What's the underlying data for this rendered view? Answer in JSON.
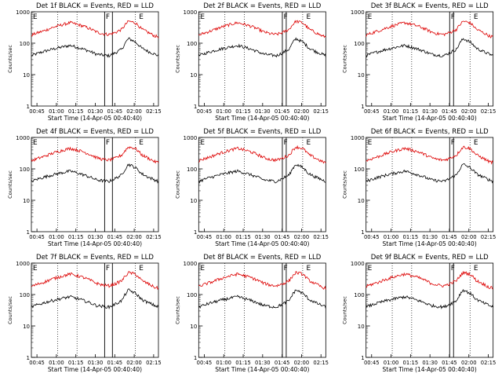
{
  "colors": {
    "events": "#000000",
    "lld": "#dd0000",
    "axis": "#000000"
  },
  "common": {
    "ylabel": "Counts/sec",
    "xlabel": "Start Time (14-Apr-05 00:40:40)",
    "x_ticks": [
      "00:45",
      "01:00",
      "01:15",
      "01:30",
      "01:45",
      "02:00",
      "02:15"
    ],
    "y_ticks": [
      "1",
      "10",
      "100",
      "1000"
    ],
    "markers": [
      "E",
      "F",
      "E"
    ]
  },
  "chart_data": [
    {
      "type": "line",
      "title": "Det 1f BLACK = Events, RED = LLD",
      "xlabel": "Start Time (14-Apr-05 00:40:40)",
      "ylabel": "Counts/sec",
      "ylog": true,
      "ylim": [
        1,
        1000
      ],
      "x_range_minutes_after_start": [
        0,
        98
      ],
      "gridlines_minutes": [
        20.2,
        35.2,
        80.2
      ],
      "band_minutes": [
        56.5,
        62.5
      ],
      "series": [
        {
          "x": [
            0,
            10,
            20,
            30,
            40,
            50,
            55,
            60,
            65,
            70,
            75,
            80,
            85,
            90,
            95,
            98
          ],
          "values": [
            40,
            55,
            70,
            85,
            65,
            45,
            42,
            40,
            50,
            65,
            140,
            110,
            70,
            55,
            45,
            40
          ]
        },
        {
          "x": [
            0,
            10,
            20,
            30,
            40,
            50,
            55,
            60,
            65,
            70,
            75,
            80,
            85,
            90,
            95,
            98
          ],
          "values": [
            180,
            250,
            350,
            450,
            350,
            230,
            200,
            190,
            220,
            280,
            500,
            450,
            280,
            220,
            170,
            160
          ]
        }
      ]
    },
    {
      "type": "line",
      "title": "Det 2f BLACK = Events, RED = LLD",
      "xlabel": "Start Time (14-Apr-05 00:40:40)",
      "ylabel": "Counts/sec",
      "ylog": true,
      "ylim": [
        1,
        1000
      ],
      "x_range_minutes_after_start": [
        0,
        98
      ],
      "gridlines_minutes": [
        20.2,
        35.2,
        80.2
      ],
      "band_minutes": [
        64.5,
        67.5
      ],
      "series": [
        {
          "x": [
            0,
            10,
            20,
            30,
            40,
            50,
            55,
            60,
            65,
            70,
            75,
            80,
            85,
            90,
            95,
            98
          ],
          "values": [
            40,
            55,
            70,
            85,
            65,
            45,
            42,
            40,
            50,
            65,
            140,
            110,
            70,
            55,
            45,
            40
          ]
        },
        {
          "x": [
            0,
            10,
            20,
            30,
            40,
            50,
            55,
            60,
            65,
            70,
            75,
            80,
            85,
            90,
            95,
            98
          ],
          "values": [
            180,
            250,
            350,
            450,
            350,
            230,
            200,
            190,
            220,
            280,
            500,
            450,
            280,
            220,
            170,
            160
          ]
        }
      ]
    },
    {
      "type": "line",
      "title": "Det 3f BLACK = Events, RED = LLD",
      "xlabel": "Start Time (14-Apr-05 00:40:40)",
      "ylabel": "Counts/sec",
      "ylog": true,
      "ylim": [
        1,
        1000
      ],
      "x_range_minutes_after_start": [
        0,
        98
      ],
      "gridlines_minutes": [
        20.2,
        35.2,
        80.2
      ],
      "band_minutes": [
        64.5,
        67.5
      ],
      "series": [
        {
          "x": [
            0,
            10,
            20,
            30,
            40,
            50,
            55,
            60,
            65,
            70,
            75,
            80,
            85,
            90,
            95,
            98
          ],
          "values": [
            40,
            55,
            70,
            85,
            65,
            45,
            42,
            40,
            50,
            65,
            140,
            110,
            70,
            55,
            45,
            40
          ]
        },
        {
          "x": [
            0,
            10,
            20,
            30,
            40,
            50,
            55,
            60,
            65,
            70,
            75,
            80,
            85,
            90,
            95,
            98
          ],
          "values": [
            180,
            250,
            350,
            450,
            350,
            230,
            200,
            190,
            220,
            280,
            500,
            450,
            280,
            220,
            170,
            160
          ]
        }
      ]
    },
    {
      "type": "line",
      "title": "Det 4f BLACK = Events, RED = LLD",
      "xlabel": "Start Time (14-Apr-05 00:40:40)",
      "ylabel": "Counts/sec",
      "ylog": true,
      "ylim": [
        1,
        1000
      ],
      "x_range_minutes_after_start": [
        0,
        98
      ],
      "gridlines_minutes": [
        20.2,
        35.2,
        80.2
      ],
      "band_minutes": [
        56.5,
        62.5
      ],
      "series": [
        {
          "x": [
            0,
            10,
            20,
            30,
            40,
            50,
            55,
            60,
            65,
            70,
            75,
            80,
            85,
            90,
            95,
            98
          ],
          "values": [
            40,
            55,
            70,
            85,
            65,
            45,
            42,
            40,
            50,
            65,
            140,
            110,
            70,
            55,
            45,
            40
          ]
        },
        {
          "x": [
            0,
            10,
            20,
            30,
            40,
            50,
            55,
            60,
            65,
            70,
            75,
            80,
            85,
            90,
            95,
            98
          ],
          "values": [
            180,
            250,
            350,
            450,
            350,
            230,
            200,
            190,
            220,
            280,
            500,
            450,
            280,
            220,
            170,
            160
          ]
        }
      ]
    },
    {
      "type": "line",
      "title": "Det 5f BLACK = Events, RED = LLD",
      "xlabel": "Start Time (14-Apr-05 00:40:40)",
      "ylabel": "Counts/sec",
      "ylog": true,
      "ylim": [
        1,
        1000
      ],
      "x_range_minutes_after_start": [
        0,
        98
      ],
      "gridlines_minutes": [
        20.2,
        35.2,
        80.2
      ],
      "band_minutes": [
        64.5,
        67.5
      ],
      "series": [
        {
          "x": [
            0,
            10,
            20,
            30,
            40,
            50,
            55,
            60,
            65,
            70,
            75,
            80,
            85,
            90,
            95,
            98
          ],
          "values": [
            40,
            55,
            70,
            85,
            65,
            45,
            42,
            40,
            50,
            65,
            140,
            110,
            70,
            55,
            45,
            40
          ]
        },
        {
          "x": [
            0,
            10,
            20,
            30,
            40,
            50,
            55,
            60,
            65,
            70,
            75,
            80,
            85,
            90,
            95,
            98
          ],
          "values": [
            180,
            250,
            350,
            450,
            350,
            230,
            200,
            190,
            220,
            280,
            500,
            450,
            280,
            220,
            170,
            160
          ]
        }
      ]
    },
    {
      "type": "line",
      "title": "Det 6f BLACK = Events, RED = LLD",
      "xlabel": "Start Time (14-Apr-05 00:40:40)",
      "ylabel": "Counts/sec",
      "ylog": true,
      "ylim": [
        1,
        1000
      ],
      "x_range_minutes_after_start": [
        0,
        98
      ],
      "gridlines_minutes": [
        20.2,
        35.2,
        80.2
      ],
      "band_minutes": [
        64.5,
        67.5
      ],
      "series": [
        {
          "x": [
            0,
            10,
            20,
            30,
            40,
            50,
            55,
            60,
            65,
            70,
            75,
            80,
            85,
            90,
            95,
            98
          ],
          "values": [
            40,
            55,
            70,
            85,
            65,
            45,
            42,
            40,
            50,
            65,
            140,
            110,
            70,
            55,
            45,
            40
          ]
        },
        {
          "x": [
            0,
            10,
            20,
            30,
            40,
            50,
            55,
            60,
            65,
            70,
            75,
            80,
            85,
            90,
            95,
            98
          ],
          "values": [
            180,
            250,
            350,
            450,
            350,
            230,
            200,
            190,
            220,
            280,
            500,
            450,
            280,
            220,
            170,
            160
          ]
        }
      ]
    },
    {
      "type": "line",
      "title": "Det 7f BLACK = Events, RED = LLD",
      "xlabel": "Start Time (14-Apr-05 00:40:40)",
      "ylabel": "Counts/sec",
      "ylog": true,
      "ylim": [
        1,
        1000
      ],
      "x_range_minutes_after_start": [
        0,
        98
      ],
      "gridlines_minutes": [
        20.2,
        35.2,
        80.2
      ],
      "band_minutes": [
        56.5,
        62.5
      ],
      "series": [
        {
          "x": [
            0,
            10,
            20,
            30,
            40,
            50,
            55,
            60,
            65,
            70,
            75,
            80,
            85,
            90,
            95,
            98
          ],
          "values": [
            40,
            55,
            70,
            85,
            65,
            45,
            42,
            40,
            50,
            65,
            140,
            110,
            70,
            55,
            45,
            40
          ]
        },
        {
          "x": [
            0,
            10,
            20,
            30,
            40,
            50,
            55,
            60,
            65,
            70,
            75,
            80,
            85,
            90,
            95,
            98
          ],
          "values": [
            180,
            250,
            350,
            450,
            350,
            230,
            200,
            190,
            220,
            280,
            500,
            450,
            280,
            220,
            170,
            160
          ]
        }
      ]
    },
    {
      "type": "line",
      "title": "Det 8f BLACK = Events, RED = LLD",
      "xlabel": "Start Time (14-Apr-05 00:40:40)",
      "ylabel": "Counts/sec",
      "ylog": true,
      "ylim": [
        1,
        1000
      ],
      "x_range_minutes_after_start": [
        0,
        98
      ],
      "gridlines_minutes": [
        20.2,
        35.2,
        80.2
      ],
      "band_minutes": [
        64.5,
        67.5
      ],
      "series": [
        {
          "x": [
            0,
            10,
            20,
            30,
            40,
            50,
            55,
            60,
            65,
            70,
            75,
            80,
            85,
            90,
            95,
            98
          ],
          "values": [
            40,
            55,
            70,
            85,
            65,
            45,
            42,
            40,
            50,
            65,
            140,
            110,
            70,
            55,
            45,
            40
          ]
        },
        {
          "x": [
            0,
            10,
            20,
            30,
            40,
            50,
            55,
            60,
            65,
            70,
            75,
            80,
            85,
            90,
            95,
            98
          ],
          "values": [
            180,
            250,
            350,
            450,
            350,
            230,
            200,
            190,
            220,
            280,
            500,
            450,
            280,
            220,
            170,
            160
          ]
        }
      ]
    },
    {
      "type": "line",
      "title": "Det 9f BLACK = Events, RED = LLD",
      "xlabel": "Start Time (14-Apr-05 00:40:40)",
      "ylabel": "Counts/sec",
      "ylog": true,
      "ylim": [
        1,
        1000
      ],
      "x_range_minutes_after_start": [
        0,
        98
      ],
      "gridlines_minutes": [
        20.2,
        35.2,
        80.2
      ],
      "band_minutes": [
        64.5,
        67.5
      ],
      "series": [
        {
          "x": [
            0,
            10,
            20,
            30,
            40,
            50,
            55,
            60,
            65,
            70,
            75,
            80,
            85,
            90,
            95,
            98
          ],
          "values": [
            40,
            55,
            70,
            85,
            65,
            45,
            42,
            40,
            50,
            65,
            140,
            110,
            70,
            55,
            45,
            40
          ]
        },
        {
          "x": [
            0,
            10,
            20,
            30,
            40,
            50,
            55,
            60,
            65,
            70,
            75,
            80,
            85,
            90,
            95,
            98
          ],
          "values": [
            180,
            250,
            350,
            450,
            350,
            230,
            200,
            190,
            220,
            280,
            500,
            450,
            280,
            220,
            170,
            160
          ]
        }
      ]
    }
  ]
}
